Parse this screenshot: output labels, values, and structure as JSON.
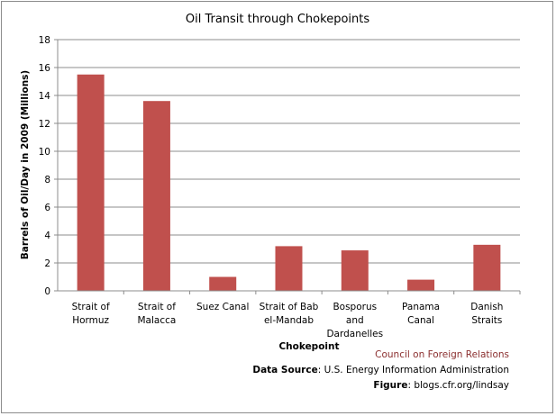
{
  "chart_data": {
    "type": "bar",
    "title": "Oil Transit through Chokepoints",
    "xlabel": "Chokepoint",
    "ylabel": "Barrels of Oil/Day  in 2009 (Millions)",
    "categories": [
      [
        "Strait of",
        "Hormuz"
      ],
      [
        "Strait of",
        "Malacca"
      ],
      [
        "Suez Canal"
      ],
      [
        "Strait of Bab",
        "el-Mandab"
      ],
      [
        "Bosporus",
        "and",
        "Dardanelles"
      ],
      [
        "Panama",
        "Canal"
      ],
      [
        "Danish",
        "Straits"
      ]
    ],
    "values": [
      15.5,
      13.6,
      1.0,
      3.2,
      2.9,
      0.8,
      3.3
    ],
    "ylim": [
      0,
      18
    ],
    "yticks": [
      "0",
      "2",
      "4",
      "6",
      "8",
      "10",
      "12",
      "14",
      "16",
      "18"
    ],
    "grid": true,
    "bar_color": "#c0504d"
  },
  "footer": {
    "org": "Council on Foreign Relations",
    "source_label": "Data Source",
    "source_text": ": U.S. Energy Information Administration",
    "figure_label": "Figure",
    "figure_text": ": blogs.cfr.org/lindsay"
  }
}
